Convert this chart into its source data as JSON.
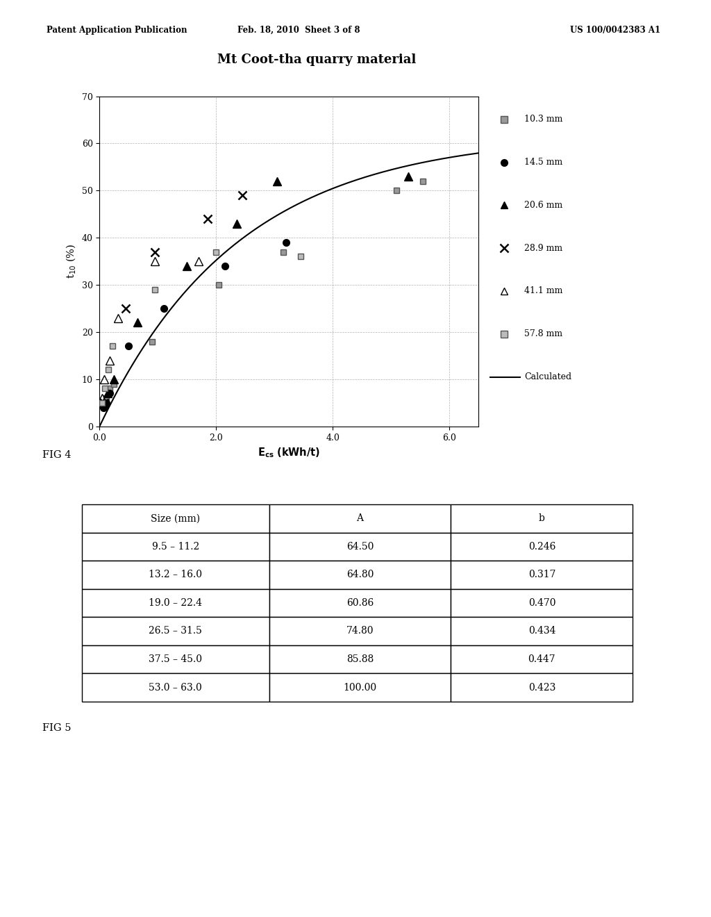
{
  "header_left": "Patent Application Publication",
  "header_mid": "Feb. 18, 2010  Sheet 3 of 8",
  "header_right": "US 100/0042383 A1",
  "chart_title": "Mt Coot-tha quarry material",
  "xlabel": "E$_{cs}$ (kWh/t)",
  "ylabel": "t$_{10}$ (%)",
  "xlim": [
    0.0,
    6.5
  ],
  "ylim": [
    0,
    70
  ],
  "xticks": [
    0.0,
    2.0,
    4.0,
    6.0
  ],
  "xtick_labels": [
    "0.0",
    "2.0",
    "4.0",
    "6.0"
  ],
  "yticks": [
    0,
    10,
    20,
    30,
    40,
    50,
    60,
    70
  ],
  "fig4_label": "FIG 4",
  "fig5_label": "FIG 5",
  "curve_A": 62.0,
  "curve_b": 0.42,
  "data_103": {
    "x": [
      0.08,
      0.12,
      0.18,
      0.25,
      0.9,
      2.05,
      3.15,
      5.1,
      5.55
    ],
    "y": [
      5,
      6,
      8,
      9,
      18,
      30,
      37,
      50,
      52
    ]
  },
  "data_145": {
    "x": [
      0.07,
      0.12,
      0.18,
      0.5,
      1.1,
      2.15,
      3.2
    ],
    "y": [
      4,
      5,
      7,
      17,
      25,
      34,
      39
    ]
  },
  "data_206": {
    "x": [
      0.07,
      0.14,
      0.25,
      0.65,
      1.5,
      2.35,
      3.05,
      5.3
    ],
    "y": [
      5,
      7,
      10,
      22,
      34,
      43,
      52,
      53
    ]
  },
  "data_289": {
    "x": [
      0.08,
      0.45,
      0.95,
      1.85,
      2.45
    ],
    "y": [
      5,
      25,
      37,
      44,
      49
    ]
  },
  "data_411": {
    "x": [
      0.04,
      0.08,
      0.18,
      0.32,
      0.95,
      1.7
    ],
    "y": [
      6,
      10,
      14,
      23,
      35,
      35
    ]
  },
  "data_578": {
    "x": [
      0.04,
      0.09,
      0.15,
      0.22,
      0.95,
      2.0,
      3.45
    ],
    "y": [
      5,
      8,
      12,
      17,
      29,
      37,
      36
    ]
  },
  "table_col_headers": [
    "Size (mm)",
    "A",
    "b"
  ],
  "table_rows": [
    [
      "9.5 – 11.2",
      "64.50",
      "0.246"
    ],
    [
      "13.2 – 16.0",
      "64.80",
      "0.317"
    ],
    [
      "19.0 – 22.4",
      "60.86",
      "0.470"
    ],
    [
      "26.5 – 31.5",
      "74.80",
      "0.434"
    ],
    [
      "37.5 – 45.0",
      "85.88",
      "0.447"
    ],
    [
      "53.0 – 63.0",
      "100.00",
      "0.423"
    ]
  ],
  "background_color": "#ffffff"
}
